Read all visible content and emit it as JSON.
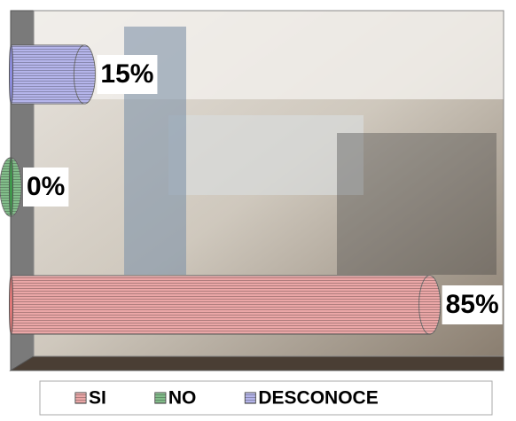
{
  "chart_data": {
    "type": "bar",
    "orientation": "horizontal",
    "categories": [
      "SI",
      "NO",
      "DESCONOCE"
    ],
    "values": [
      85,
      0,
      15
    ],
    "value_labels": [
      "85%",
      "0%",
      "15%"
    ],
    "colors": [
      "#e07878",
      "#3f9a4c",
      "#8e8ee0"
    ],
    "xlim": [
      0,
      100
    ],
    "legend": "bottom"
  }
}
